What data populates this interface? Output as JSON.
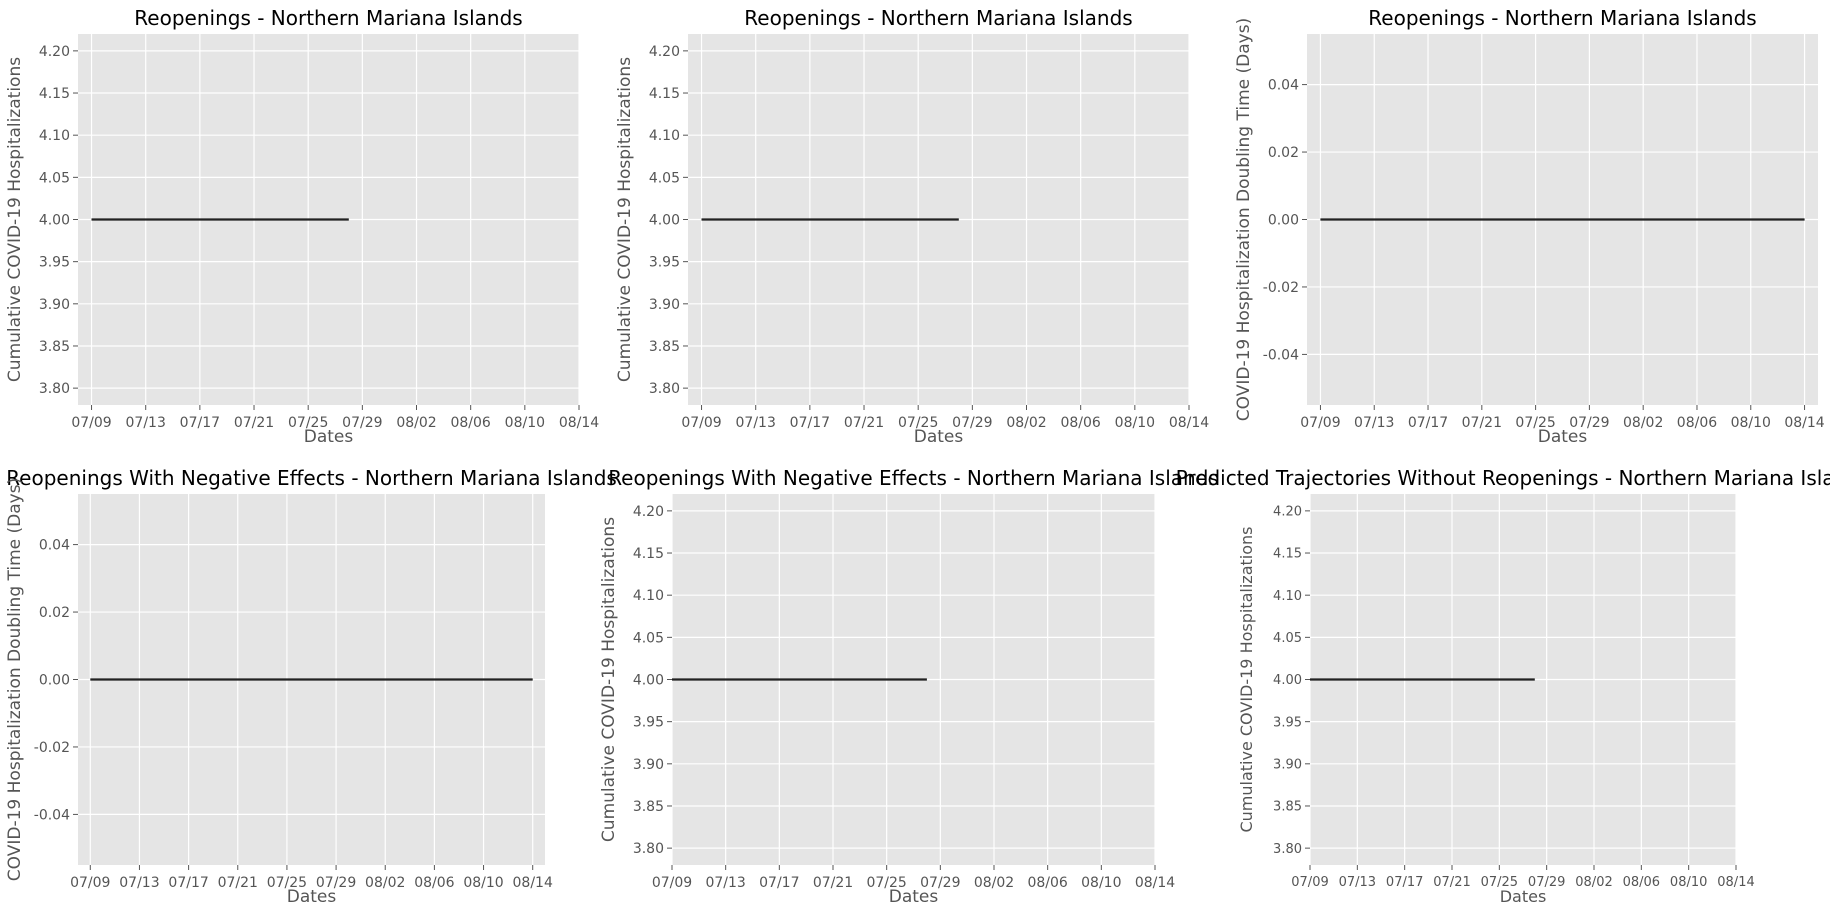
{
  "chart_data": [
    {
      "type": "line",
      "title": "Reopenings - Northern Mariana Islands",
      "xlabel": "Dates",
      "ylabel": "Cumulative COVID-19 Hospitalizations",
      "x_ticks": [
        "07/09",
        "07/13",
        "07/17",
        "07/21",
        "07/25",
        "07/29",
        "08/02",
        "08/06",
        "08/10",
        "08/14"
      ],
      "y_ticks": [
        "3.80",
        "3.85",
        "3.90",
        "3.95",
        "4.00",
        "4.05",
        "4.10",
        "4.15",
        "4.20"
      ],
      "xlim": [
        "07/08",
        "08/14"
      ],
      "ylim": [
        3.78,
        4.22
      ],
      "grid": true,
      "series": [
        {
          "color": "#222222",
          "x": [
            "07/09",
            "07/28"
          ],
          "y": [
            4.0,
            4.0
          ]
        }
      ]
    },
    {
      "type": "line",
      "title": "Reopenings - Northern Mariana Islands",
      "xlabel": "Dates",
      "ylabel": "Cumulative COVID-19 Hospitalizations",
      "x_ticks": [
        "07/09",
        "07/13",
        "07/17",
        "07/21",
        "07/25",
        "07/29",
        "08/02",
        "08/06",
        "08/10",
        "08/14"
      ],
      "y_ticks": [
        "3.80",
        "3.85",
        "3.90",
        "3.95",
        "4.00",
        "4.05",
        "4.10",
        "4.15",
        "4.20"
      ],
      "xlim": [
        "07/08",
        "08/14"
      ],
      "ylim": [
        3.78,
        4.22
      ],
      "grid": true,
      "series": [
        {
          "color": "#222222",
          "x": [
            "07/09",
            "07/28"
          ],
          "y": [
            4.0,
            4.0
          ]
        }
      ]
    },
    {
      "type": "line",
      "title": "Reopenings - Northern Mariana Islands",
      "xlabel": "Dates",
      "ylabel": "COVID-19 Hospitalization Doubling Time (Days)",
      "x_ticks": [
        "07/09",
        "07/13",
        "07/17",
        "07/21",
        "07/25",
        "07/29",
        "08/02",
        "08/06",
        "08/10",
        "08/14"
      ],
      "y_ticks": [
        "-0.04",
        "-0.02",
        "0.00",
        "0.02",
        "0.04"
      ],
      "xlim": [
        "07/08",
        "08/15"
      ],
      "ylim": [
        -0.055,
        0.055
      ],
      "grid": true,
      "series": [
        {
          "color": "#222222",
          "x": [
            "07/09",
            "08/14"
          ],
          "y": [
            0.0,
            0.0
          ]
        }
      ]
    },
    {
      "type": "line",
      "title": "Reopenings With Negative Effects - Northern Mariana Islands",
      "xlabel": "Dates",
      "ylabel": "COVID-19 Hospitalization Doubling Time (Days)",
      "x_ticks": [
        "07/09",
        "07/13",
        "07/17",
        "07/21",
        "07/25",
        "07/29",
        "08/02",
        "08/06",
        "08/10",
        "08/14"
      ],
      "y_ticks": [
        "-0.04",
        "-0.02",
        "0.00",
        "0.02",
        "0.04"
      ],
      "xlim": [
        "07/08",
        "08/15"
      ],
      "ylim": [
        -0.055,
        0.055
      ],
      "grid": true,
      "series": [
        {
          "color": "#222222",
          "x": [
            "07/09",
            "08/14"
          ],
          "y": [
            0.0,
            0.0
          ]
        }
      ]
    },
    {
      "type": "line",
      "title": "Reopenings With Negative Effects - Northern Mariana Islands",
      "xlabel": "Dates",
      "ylabel": "Cumulative COVID-19 Hospitalizations",
      "x_ticks": [
        "07/09",
        "07/13",
        "07/17",
        "07/21",
        "07/25",
        "07/29",
        "08/02",
        "08/06",
        "08/10",
        "08/14"
      ],
      "y_ticks": [
        "3.80",
        "3.85",
        "3.90",
        "3.95",
        "4.00",
        "4.05",
        "4.10",
        "4.15",
        "4.20"
      ],
      "xlim": [
        "07/09",
        "08/14"
      ],
      "ylim": [
        3.78,
        4.22
      ],
      "grid": true,
      "series": [
        {
          "color": "#222222",
          "x": [
            "07/09",
            "07/28"
          ],
          "y": [
            4.0,
            4.0
          ]
        }
      ]
    },
    {
      "type": "line",
      "title": "Predicted Trajectories Without Reopenings - Northern Mariana Islands",
      "xlabel": "Dates",
      "ylabel": "Cumulative COVID-19 Hospitalizations",
      "x_ticks": [
        "07/09",
        "07/13",
        "07/17",
        "07/21",
        "07/25",
        "07/29",
        "08/02",
        "08/06",
        "08/10",
        "08/14"
      ],
      "y_ticks": [
        "3.80",
        "3.85",
        "3.90",
        "3.95",
        "4.00",
        "4.05",
        "4.10",
        "4.15",
        "4.20"
      ],
      "xlim": [
        "07/09",
        "08/14"
      ],
      "ylim": [
        3.78,
        4.22
      ],
      "grid": true,
      "series": [
        {
          "color": "#222222",
          "x": [
            "07/09",
            "07/28"
          ],
          "y": [
            4.0,
            4.0
          ]
        }
      ]
    }
  ]
}
